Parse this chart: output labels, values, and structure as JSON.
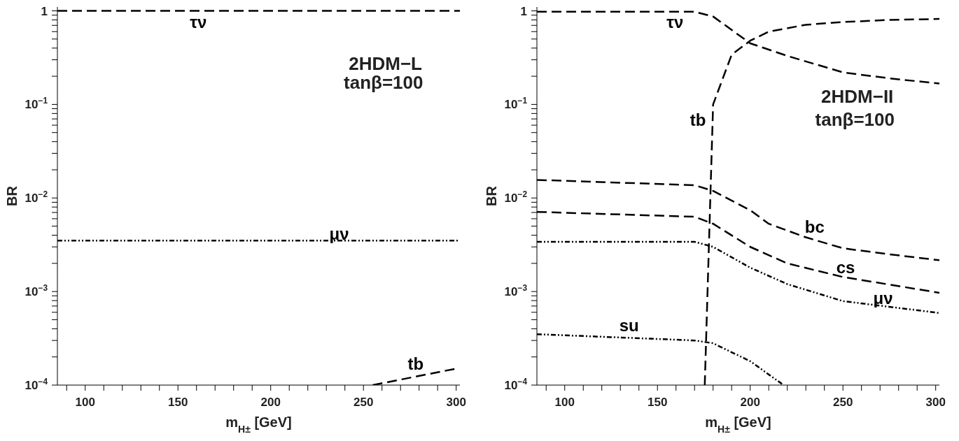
{
  "chart_data": [
    {
      "type": "line",
      "xlabel": "m$_{H±}$ [GeV]",
      "ylabel": "BR",
      "log": true,
      "xlim": [
        85,
        302
      ],
      "ylim": [
        0.0001,
        1.1
      ],
      "xticks": [
        {
          "value": 90,
          "label": null
        },
        100,
        {
          "value": 110,
          "label": null
        },
        {
          "value": 120,
          "label": null
        },
        {
          "value": 130,
          "label": null
        },
        {
          "value": 140,
          "label": null
        },
        150,
        {
          "value": 160,
          "label": null
        },
        {
          "value": 170,
          "label": null
        },
        {
          "value": 180,
          "label": null
        },
        {
          "value": 190,
          "label": null
        },
        200,
        {
          "value": 210,
          "label": null
        },
        {
          "value": 220,
          "label": null
        },
        {
          "value": 230,
          "label": null
        },
        {
          "value": 240,
          "label": null
        },
        250,
        {
          "value": 260,
          "label": null
        },
        {
          "value": 270,
          "label": null
        },
        {
          "value": 280,
          "label": null
        },
        {
          "value": 290,
          "label": null
        },
        300
      ],
      "yticks": [
        {
          "value": 0.0001,
          "label": "10$^{−4}$"
        },
        {
          "value": 0.0002,
          "label": null
        },
        {
          "value": 0.0003,
          "label": null
        },
        {
          "value": 0.0004,
          "label": null
        },
        {
          "value": 0.0005,
          "label": null
        },
        {
          "value": 0.0006,
          "label": null
        },
        {
          "value": 0.0007,
          "label": null
        },
        {
          "value": 0.0008,
          "label": null
        },
        {
          "value": 0.0009,
          "label": null
        },
        {
          "value": 0.001,
          "label": "10$^{−3}$"
        },
        {
          "value": 0.002,
          "label": null
        },
        {
          "value": 0.003,
          "label": null
        },
        {
          "value": 0.004,
          "label": null
        },
        {
          "value": 0.005,
          "label": null
        },
        {
          "value": 0.006,
          "label": null
        },
        {
          "value": 0.007,
          "label": null
        },
        {
          "value": 0.008,
          "label": null
        },
        {
          "value": 0.009,
          "label": null
        },
        {
          "value": 0.01,
          "label": "10$^{−2}$"
        },
        {
          "value": 0.02,
          "label": null
        },
        {
          "value": 0.03,
          "label": null
        },
        {
          "value": 0.04,
          "label": null
        },
        {
          "value": 0.05,
          "label": null
        },
        {
          "value": 0.06,
          "label": null
        },
        {
          "value": 0.07,
          "label": null
        },
        {
          "value": 0.08,
          "label": null
        },
        {
          "value": 0.09,
          "label": null
        },
        {
          "value": 0.1,
          "label": "10$^{−1}$"
        },
        {
          "value": 0.2,
          "label": null
        },
        {
          "value": 0.3,
          "label": null
        },
        {
          "value": 0.4,
          "label": null
        },
        {
          "value": 0.5,
          "label": null
        },
        {
          "value": 0.6,
          "label": null
        },
        {
          "value": 0.7,
          "label": null
        },
        {
          "value": 0.8,
          "label": null
        },
        {
          "value": 0.9,
          "label": null
        },
        1
      ],
      "annotations": [
        "2HDM−L",
        "tanβ=100"
      ],
      "series": [
        {
          "name": "τν",
          "color": "#000000",
          "line_style": "dashed",
          "x": [
            85,
            302
          ],
          "values": [
            1,
            1
          ]
        },
        {
          "name": "μν",
          "color": "#000000",
          "line_style": "dotted",
          "x": [
            85,
            302
          ],
          "values": [
            0.0035,
            0.0035
          ]
        },
        {
          "name": "tb",
          "color": "#000000",
          "line_style": "dashed",
          "x": [
            255,
            300
          ],
          "values": [
            0.0001,
            0.00015
          ]
        }
      ]
    },
    {
      "type": "line",
      "xlabel": "m$_{H±}$ [GeV]",
      "ylabel": "BR",
      "log": true,
      "xlim": [
        85,
        302
      ],
      "ylim": [
        0.0001,
        1.1
      ],
      "xticks": [
        {
          "value": 90,
          "label": null
        },
        100,
        {
          "value": 110,
          "label": null
        },
        {
          "value": 120,
          "label": null
        },
        {
          "value": 130,
          "label": null
        },
        {
          "value": 140,
          "label": null
        },
        150,
        {
          "value": 160,
          "label": null
        },
        {
          "value": 170,
          "label": null
        },
        {
          "value": 180,
          "label": null
        },
        {
          "value": 190,
          "label": null
        },
        200,
        {
          "value": 210,
          "label": null
        },
        {
          "value": 220,
          "label": null
        },
        {
          "value": 230,
          "label": null
        },
        {
          "value": 240,
          "label": null
        },
        250,
        {
          "value": 260,
          "label": null
        },
        {
          "value": 270,
          "label": null
        },
        {
          "value": 280,
          "label": null
        },
        {
          "value": 290,
          "label": null
        },
        300
      ],
      "yticks": [
        {
          "value": 0.0001,
          "label": "10$^{−4}$"
        },
        {
          "value": 0.0002,
          "label": null
        },
        {
          "value": 0.0003,
          "label": null
        },
        {
          "value": 0.0004,
          "label": null
        },
        {
          "value": 0.0005,
          "label": null
        },
        {
          "value": 0.0006,
          "label": null
        },
        {
          "value": 0.0007,
          "label": null
        },
        {
          "value": 0.0008,
          "label": null
        },
        {
          "value": 0.0009,
          "label": null
        },
        {
          "value": 0.001,
          "label": "10$^{−3}$"
        },
        {
          "value": 0.002,
          "label": null
        },
        {
          "value": 0.003,
          "label": null
        },
        {
          "value": 0.004,
          "label": null
        },
        {
          "value": 0.005,
          "label": null
        },
        {
          "value": 0.006,
          "label": null
        },
        {
          "value": 0.007,
          "label": null
        },
        {
          "value": 0.008,
          "label": null
        },
        {
          "value": 0.009,
          "label": null
        },
        {
          "value": 0.01,
          "label": "10$^{−2}$"
        },
        {
          "value": 0.02,
          "label": null
        },
        {
          "value": 0.03,
          "label": null
        },
        {
          "value": 0.04,
          "label": null
        },
        {
          "value": 0.05,
          "label": null
        },
        {
          "value": 0.06,
          "label": null
        },
        {
          "value": 0.07,
          "label": null
        },
        {
          "value": 0.08,
          "label": null
        },
        {
          "value": 0.09,
          "label": null
        },
        {
          "value": 0.1,
          "label": "10$^{−1}$"
        },
        {
          "value": 0.2,
          "label": null
        },
        {
          "value": 0.3,
          "label": null
        },
        {
          "value": 0.4,
          "label": null
        },
        {
          "value": 0.5,
          "label": null
        },
        {
          "value": 0.6,
          "label": null
        },
        {
          "value": 0.7,
          "label": null
        },
        {
          "value": 0.8,
          "label": null
        },
        {
          "value": 0.9,
          "label": null
        },
        1
      ],
      "annotations": [
        "2HDM−II",
        "tanβ=100"
      ],
      "series": [
        {
          "name": "τν",
          "color": "#000000",
          "line_style": "dashed",
          "x": [
            85,
            170,
            180,
            200,
            220,
            250,
            275,
            302
          ],
          "values": [
            0.98,
            0.98,
            0.87,
            0.45,
            0.33,
            0.22,
            0.19,
            0.167
          ]
        },
        {
          "name": "tb",
          "color": "#000000",
          "line_style": "dashed",
          "x": [
            175.5,
            180,
            190,
            200,
            210,
            230,
            250,
            275,
            302
          ],
          "values": [
            0.0001,
            0.1,
            0.34,
            0.48,
            0.6,
            0.71,
            0.76,
            0.8,
            0.82
          ]
        },
        {
          "name": "bc",
          "color": "#000000",
          "line_style": "dashed",
          "x": [
            85,
            170,
            180,
            200,
            210,
            230,
            250,
            275,
            302
          ],
          "values": [
            0.0156,
            0.0137,
            0.0119,
            0.0074,
            0.0053,
            0.0038,
            0.0029,
            0.0025,
            0.00216
          ]
        },
        {
          "name": "cs",
          "color": "#000000",
          "line_style": "dashed",
          "x": [
            85,
            170,
            180,
            200,
            220,
            250,
            302
          ],
          "values": [
            0.0071,
            0.0063,
            0.0053,
            0.003,
            0.002,
            0.00143,
            0.00097
          ]
        },
        {
          "name": "μν",
          "color": "#000000",
          "line_style": "dotted",
          "x": [
            85,
            170,
            180,
            200,
            220,
            250,
            302
          ],
          "values": [
            0.0034,
            0.0034,
            0.003,
            0.0018,
            0.0012,
            0.00079,
            0.00059
          ]
        },
        {
          "name": "su",
          "color": "#000000",
          "line_style": "dotted",
          "x": [
            85,
            170,
            180,
            200,
            218
          ],
          "values": [
            0.00035,
            0.0003,
            0.00028,
            0.00018,
            0.0001
          ]
        }
      ]
    }
  ]
}
